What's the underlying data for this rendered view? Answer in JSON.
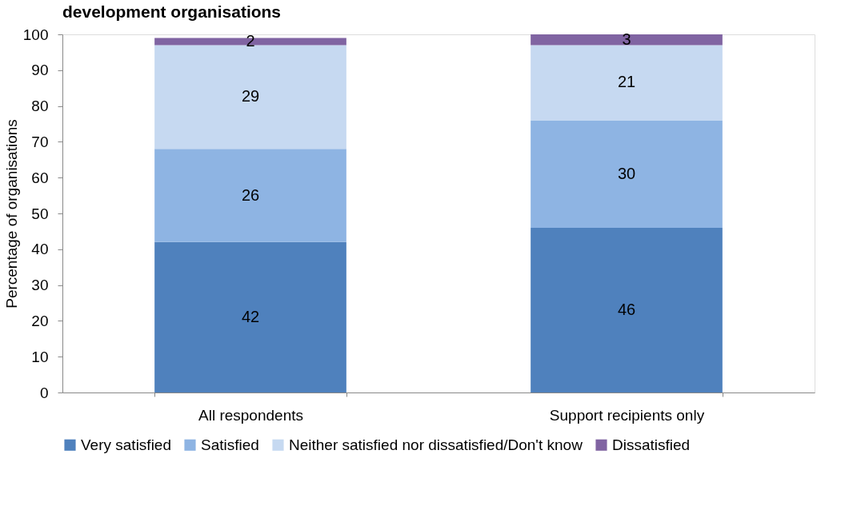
{
  "chart_data": {
    "type": "bar",
    "title": "development organisations",
    "ylabel": "Percentage of organisations",
    "categories": [
      "All respondents",
      "Support recipients only"
    ],
    "series": [
      {
        "name": "Very satisfied",
        "color": "#4f81bd",
        "values": [
          42,
          46
        ]
      },
      {
        "name": "Satisfied",
        "color": "#8eb4e3",
        "values": [
          26,
          30
        ]
      },
      {
        "name": "Neither satisfied nor dissatisfied/Don't know",
        "color": "#c6d9f1",
        "values": [
          29,
          21
        ]
      },
      {
        "name": "Dissatisfied",
        "color": "#8064a2",
        "values": [
          2,
          3
        ]
      }
    ],
    "stacked": true,
    "ylim": [
      0,
      100
    ],
    "yticks": [
      0,
      10,
      20,
      30,
      40,
      50,
      60,
      70,
      80,
      90,
      100
    ],
    "data_labels": true,
    "grid": false,
    "legend": "bottom"
  }
}
